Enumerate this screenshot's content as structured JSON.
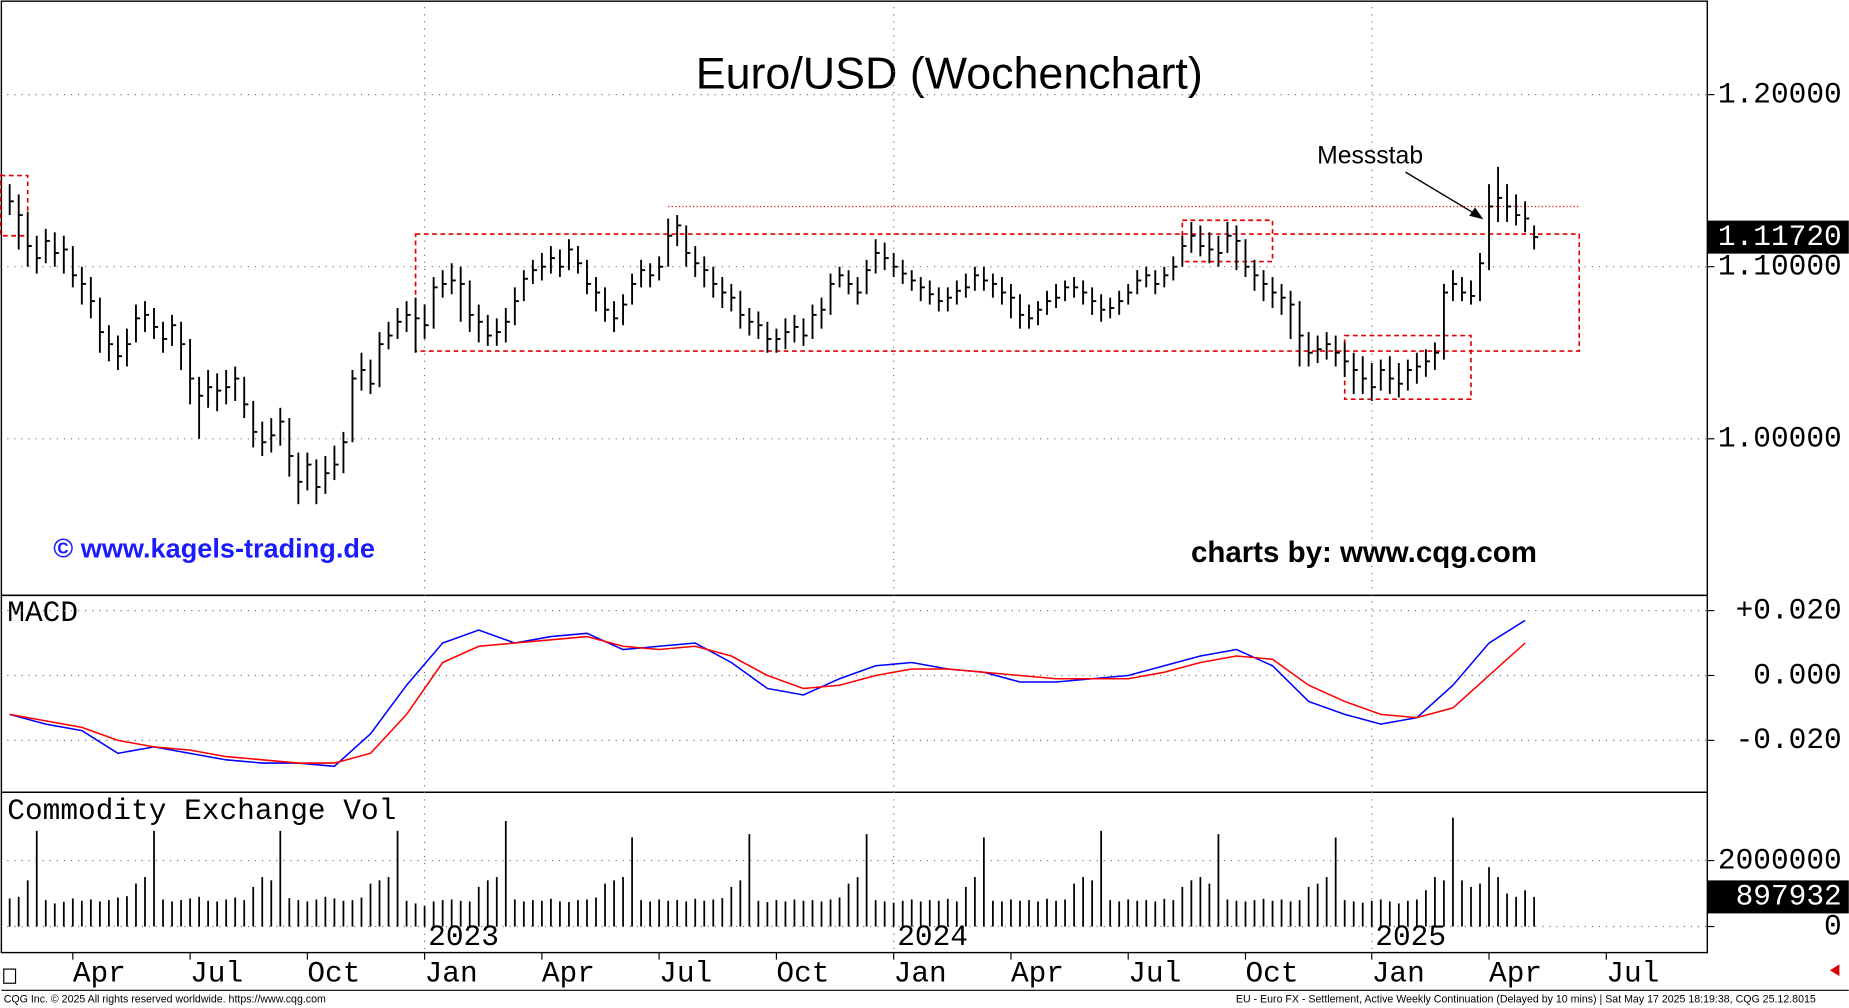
{
  "chart_data": [
    {
      "type": "ohlc",
      "title": "Euro/USD (Wochenchart)",
      "color": "#000000",
      "annotations": {
        "measure": "Messstab",
        "copyright": "© www.kagels-trading.de",
        "source": "charts by: www.cqg.com"
      },
      "xlim": [
        -1.05,
        188.2
      ],
      "ylim": [
        0.909,
        1.255
      ],
      "yticks": [
        {
          "value": 1.0,
          "label": "1.00000"
        },
        {
          "value": 1.1,
          "label": "1.10000"
        },
        {
          "value": 1.2,
          "label": "1.20000"
        }
      ],
      "grid": true,
      "last_label": "1.11720",
      "box_color": "#e00000",
      "boxes": [
        {
          "from": -1,
          "to": 2,
          "high": 1.153,
          "low": 1.118
        },
        {
          "from": 45,
          "to": 174,
          "high": 1.119,
          "low": 1.051
        },
        {
          "from": 130,
          "to": 140,
          "high": 1.127,
          "low": 1.103
        },
        {
          "from": 148,
          "to": 162,
          "high": 1.06,
          "low": 1.023
        }
      ],
      "line": {
        "from": 73,
        "to": 174,
        "value": 1.135
      },
      "high": [
        1.148,
        1.142,
        1.132,
        1.118,
        1.122,
        1.12,
        1.118,
        1.112,
        1.1,
        1.094,
        1.082,
        1.066,
        1.06,
        1.064,
        1.078,
        1.08,
        1.076,
        1.068,
        1.072,
        1.068,
        1.058,
        1.036,
        1.04,
        1.038,
        1.04,
        1.042,
        1.036,
        1.022,
        1.01,
        1.012,
        1.018,
        1.012,
        0.992,
        0.992,
        0.988,
        0.99,
        0.996,
        1.004,
        1.04,
        1.05,
        1.046,
        1.062,
        1.068,
        1.076,
        1.08,
        1.082,
        1.078,
        1.094,
        1.098,
        1.102,
        1.1,
        1.092,
        1.078,
        1.072,
        1.07,
        1.076,
        1.088,
        1.098,
        1.104,
        1.108,
        1.112,
        1.11,
        1.116,
        1.112,
        1.104,
        1.094,
        1.088,
        1.08,
        1.084,
        1.096,
        1.104,
        1.102,
        1.106,
        1.128,
        1.13,
        1.124,
        1.112,
        1.106,
        1.1,
        1.094,
        1.09,
        1.086,
        1.076,
        1.074,
        1.068,
        1.064,
        1.07,
        1.072,
        1.07,
        1.078,
        1.082,
        1.096,
        1.1,
        1.098,
        1.094,
        1.104,
        1.116,
        1.114,
        1.108,
        1.104,
        1.098,
        1.094,
        1.092,
        1.088,
        1.088,
        1.092,
        1.096,
        1.1,
        1.1,
        1.096,
        1.094,
        1.09,
        1.084,
        1.078,
        1.08,
        1.086,
        1.09,
        1.092,
        1.094,
        1.092,
        1.088,
        1.084,
        1.082,
        1.086,
        1.09,
        1.098,
        1.1,
        1.098,
        1.1,
        1.106,
        1.118,
        1.126,
        1.124,
        1.12,
        1.118,
        1.126,
        1.124,
        1.116,
        1.104,
        1.098,
        1.094,
        1.09,
        1.086,
        1.08,
        1.062,
        1.06,
        1.062,
        1.06,
        1.056,
        1.05,
        1.048,
        1.044,
        1.046,
        1.048,
        1.044,
        1.046,
        1.05,
        1.052,
        1.056,
        1.09,
        1.098,
        1.094,
        1.092,
        1.108,
        1.148,
        1.158,
        1.148,
        1.142,
        1.138,
        1.124
      ],
      "low": [
        1.13,
        1.11,
        1.1,
        1.096,
        1.102,
        1.1,
        1.096,
        1.088,
        1.078,
        1.07,
        1.05,
        1.045,
        1.04,
        1.042,
        1.056,
        1.062,
        1.058,
        1.05,
        1.054,
        1.04,
        1.02,
        1.0,
        1.018,
        1.016,
        1.02,
        1.022,
        1.012,
        0.995,
        0.99,
        0.992,
        0.996,
        0.978,
        0.962,
        0.97,
        0.962,
        0.968,
        0.976,
        0.98,
        0.998,
        1.028,
        1.026,
        1.03,
        1.052,
        1.058,
        1.062,
        1.05,
        1.058,
        1.064,
        1.082,
        1.084,
        1.068,
        1.062,
        1.056,
        1.054,
        1.054,
        1.056,
        1.066,
        1.08,
        1.09,
        1.092,
        1.096,
        1.094,
        1.098,
        1.096,
        1.084,
        1.074,
        1.068,
        1.062,
        1.066,
        1.078,
        1.088,
        1.088,
        1.092,
        1.1,
        1.112,
        1.1,
        1.094,
        1.088,
        1.082,
        1.076,
        1.074,
        1.064,
        1.06,
        1.058,
        1.05,
        1.05,
        1.052,
        1.056,
        1.054,
        1.058,
        1.064,
        1.072,
        1.088,
        1.084,
        1.078,
        1.084,
        1.096,
        1.098,
        1.094,
        1.09,
        1.086,
        1.08,
        1.078,
        1.074,
        1.074,
        1.078,
        1.082,
        1.086,
        1.086,
        1.082,
        1.078,
        1.07,
        1.064,
        1.064,
        1.066,
        1.072,
        1.076,
        1.08,
        1.082,
        1.078,
        1.072,
        1.068,
        1.07,
        1.072,
        1.078,
        1.084,
        1.088,
        1.084,
        1.088,
        1.092,
        1.1,
        1.108,
        1.106,
        1.102,
        1.1,
        1.108,
        1.098,
        1.094,
        1.086,
        1.08,
        1.076,
        1.072,
        1.058,
        1.042,
        1.042,
        1.044,
        1.046,
        1.042,
        1.036,
        1.026,
        1.026,
        1.022,
        1.028,
        1.026,
        1.024,
        1.028,
        1.032,
        1.036,
        1.04,
        1.046,
        1.08,
        1.08,
        1.078,
        1.08,
        1.098,
        1.126,
        1.126,
        1.124,
        1.12,
        1.11
      ],
      "close": [
        1.138,
        1.13,
        1.112,
        1.105,
        1.115,
        1.108,
        1.11,
        1.095,
        1.09,
        1.08,
        1.062,
        1.055,
        1.048,
        1.055,
        1.07,
        1.072,
        1.065,
        1.058,
        1.066,
        1.055,
        1.035,
        1.025,
        1.03,
        1.028,
        1.03,
        1.035,
        1.02,
        1.004,
        0.998,
        1.002,
        1.01,
        0.99,
        0.975,
        0.985,
        0.972,
        0.98,
        0.985,
        0.998,
        1.035,
        1.04,
        1.032,
        1.055,
        1.06,
        1.068,
        1.072,
        1.07,
        1.066,
        1.088,
        1.09,
        1.092,
        1.09,
        1.072,
        1.068,
        1.06,
        1.062,
        1.068,
        1.08,
        1.093,
        1.098,
        1.1,
        1.105,
        1.1,
        1.11,
        1.102,
        1.09,
        1.085,
        1.075,
        1.07,
        1.078,
        1.09,
        1.098,
        1.095,
        1.1,
        1.118,
        1.124,
        1.108,
        1.102,
        1.098,
        1.09,
        1.085,
        1.082,
        1.072,
        1.068,
        1.066,
        1.058,
        1.058,
        1.062,
        1.065,
        1.06,
        1.072,
        1.075,
        1.09,
        1.095,
        1.09,
        1.085,
        1.098,
        1.108,
        1.105,
        1.1,
        1.096,
        1.092,
        1.088,
        1.084,
        1.08,
        1.082,
        1.086,
        1.088,
        1.095,
        1.092,
        1.09,
        1.085,
        1.082,
        1.072,
        1.07,
        1.075,
        1.08,
        1.082,
        1.088,
        1.088,
        1.085,
        1.08,
        1.075,
        1.076,
        1.08,
        1.085,
        1.092,
        1.095,
        1.09,
        1.095,
        1.1,
        1.112,
        1.118,
        1.112,
        1.11,
        1.108,
        1.118,
        1.115,
        1.1,
        1.095,
        1.09,
        1.085,
        1.082,
        1.078,
        1.06,
        1.05,
        1.052,
        1.055,
        1.05,
        1.045,
        1.04,
        1.035,
        1.03,
        1.04,
        1.035,
        1.032,
        1.04,
        1.042,
        1.045,
        1.05,
        1.085,
        1.09,
        1.085,
        1.083,
        1.102,
        1.135,
        1.14,
        1.135,
        1.13,
        1.128,
        1.1172
      ]
    },
    {
      "type": "line",
      "label": "MACD",
      "x": [
        0,
        4,
        8,
        12,
        16,
        20,
        24,
        28,
        32,
        36,
        40,
        44,
        48,
        52,
        56,
        60,
        64,
        68,
        72,
        76,
        80,
        84,
        88,
        92,
        96,
        100,
        104,
        108,
        112,
        116,
        120,
        124,
        128,
        132,
        136,
        140,
        144,
        148,
        152,
        156,
        160,
        164,
        168
      ],
      "series": [
        {
          "color": "#0000ff",
          "values": [
            -0.012,
            -0.015,
            -0.017,
            -0.024,
            -0.022,
            -0.024,
            -0.026,
            -0.027,
            -0.027,
            -0.028,
            -0.018,
            -0.003,
            0.01,
            0.014,
            0.01,
            0.012,
            0.013,
            0.008,
            0.009,
            0.01,
            0.004,
            -0.004,
            -0.006,
            -0.001,
            0.003,
            0.004,
            0.002,
            0.001,
            -0.002,
            -0.002,
            -0.001,
            0.0,
            0.003,
            0.006,
            0.008,
            0.003,
            -0.008,
            -0.012,
            -0.015,
            -0.013,
            -0.003,
            0.01,
            0.017
          ]
        },
        {
          "color": "#ff0000",
          "values": [
            -0.012,
            -0.014,
            -0.016,
            -0.02,
            -0.022,
            -0.023,
            -0.025,
            -0.026,
            -0.027,
            -0.027,
            -0.024,
            -0.012,
            0.004,
            0.009,
            0.01,
            0.011,
            0.012,
            0.009,
            0.008,
            0.009,
            0.006,
            0.0,
            -0.004,
            -0.003,
            0.0,
            0.002,
            0.002,
            0.001,
            0.0,
            -0.001,
            -0.001,
            -0.001,
            0.001,
            0.004,
            0.006,
            0.005,
            -0.003,
            -0.008,
            -0.012,
            -0.013,
            -0.01,
            0.0,
            0.01
          ]
        }
      ],
      "ylim": [
        -0.036,
        0.0247
      ],
      "yticks": [
        {
          "value": 0.02,
          "label": "+0.020"
        },
        {
          "value": 0,
          "label": "0.000"
        },
        {
          "value": -0.02,
          "label": "-0.020"
        }
      ]
    },
    {
      "type": "bar",
      "label": "Commodity Exchange Vol",
      "color": "#000000",
      "values": [
        850000,
        900000,
        1400000,
        2900000,
        800000,
        700000,
        750000,
        850000,
        780000,
        820000,
        760000,
        800000,
        880000,
        920000,
        1300000,
        1500000,
        2900000,
        820000,
        760000,
        800000,
        850000,
        900000,
        780000,
        760000,
        820000,
        880000,
        800000,
        1200000,
        1500000,
        1400000,
        2900000,
        860000,
        800000,
        760000,
        820000,
        900000,
        850000,
        780000,
        800000,
        880000,
        1300000,
        1400000,
        1500000,
        2900000,
        780000,
        700000,
        620000,
        760000,
        800000,
        820000,
        780000,
        760000,
        1200000,
        1400000,
        1500000,
        3200000,
        820000,
        760000,
        800000,
        780000,
        840000,
        760000,
        740000,
        800000,
        820000,
        880000,
        1300000,
        1400000,
        1500000,
        2700000,
        800000,
        760000,
        820000,
        780000,
        800000,
        760000,
        840000,
        780000,
        820000,
        860000,
        1200000,
        1400000,
        2800000,
        780000,
        740000,
        800000,
        760000,
        820000,
        780000,
        800000,
        760000,
        820000,
        880000,
        1300000,
        1500000,
        2800000,
        800000,
        760000,
        720000,
        780000,
        820000,
        760000,
        800000,
        780000,
        840000,
        760000,
        1200000,
        1500000,
        2700000,
        780000,
        760000,
        820000,
        780000,
        800000,
        760000,
        840000,
        780000,
        820000,
        1300000,
        1500000,
        1400000,
        2900000,
        800000,
        760000,
        820000,
        780000,
        800000,
        760000,
        840000,
        800000,
        1200000,
        1400000,
        1500000,
        1300000,
        2800000,
        820000,
        780000,
        760000,
        800000,
        840000,
        780000,
        820000,
        760000,
        800000,
        1200000,
        1300000,
        1500000,
        2700000,
        800000,
        760000,
        720000,
        780000,
        820000,
        760000,
        700000,
        780000,
        820000,
        1100000,
        1500000,
        1400000,
        3300000,
        1400000,
        1200000,
        1300000,
        1800000,
        1500000,
        1000000,
        900000,
        1100000,
        897932
      ],
      "ylim": [
        -790000,
        4070000
      ],
      "yticks": [
        2000000,
        0
      ],
      "xticks": [
        {
          "value": 7,
          "label": "Apr"
        },
        {
          "value": 20,
          "label": "Jul"
        },
        {
          "value": 33,
          "label": "Oct"
        },
        {
          "value": 46,
          "label": "Jan"
        },
        {
          "value": 59,
          "label": "Apr"
        },
        {
          "value": 72,
          "label": "Jul"
        },
        {
          "value": 85,
          "label": "Oct"
        },
        {
          "value": 98,
          "label": "Jan"
        },
        {
          "value": 111,
          "label": "Apr"
        },
        {
          "value": 124,
          "label": "Jul"
        },
        {
          "value": 137,
          "label": "Oct"
        },
        {
          "value": 151,
          "label": "Jan"
        },
        {
          "value": 164,
          "label": "Apr"
        },
        {
          "value": 177,
          "label": "Jul"
        }
      ],
      "year_ticks": [
        {
          "value": 46,
          "label": "2023"
        },
        {
          "value": 98,
          "label": "2024"
        },
        {
          "value": 151,
          "label": "2025"
        }
      ]
    }
  ],
  "footer": {
    "left": "CQG Inc. © 2025 All rights reserved worldwide. https://www.cqg.com",
    "right": "EU - Euro FX - Settlement, Active Weekly Continuation (Delayed by 10 mins) | Sat May 17 2025 18:19:38, CQG 25.12.8015"
  }
}
